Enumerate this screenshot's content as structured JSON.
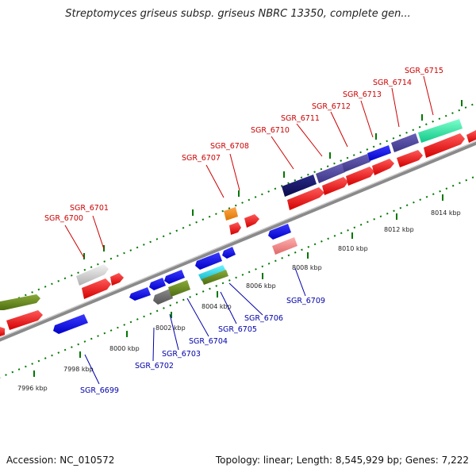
{
  "title": "Streptomyces griseus subsp. griseus NBRC 13350, complete gen...",
  "footer": {
    "accession": "Accession: NC_010572",
    "summary": "Topology: linear; Length: 8,545,929 bp; Genes: 7,222"
  },
  "axis_ticks": [
    "7996 kbp",
    "7998 kbp",
    "8000 kbp",
    "8002 kbp",
    "8004 kbp",
    "8006 kbp",
    "8008 kbp",
    "8010 kbp",
    "8012 kbp",
    "8014 kbp"
  ],
  "colors": {
    "forward_label": "#cc0000",
    "reverse_label": "#0000aa",
    "backbone": "#888888",
    "ruler": "#007700"
  },
  "gene_labels": [
    {
      "id": "SGR_6699",
      "strand": "reverse"
    },
    {
      "id": "SGR_6700",
      "strand": "forward"
    },
    {
      "id": "SGR_6701",
      "strand": "forward"
    },
    {
      "id": "SGR_6702",
      "strand": "reverse"
    },
    {
      "id": "SGR_6703",
      "strand": "reverse"
    },
    {
      "id": "SGR_6704",
      "strand": "reverse"
    },
    {
      "id": "SGR_6705",
      "strand": "reverse"
    },
    {
      "id": "SGR_6706",
      "strand": "reverse"
    },
    {
      "id": "SGR_6707",
      "strand": "forward"
    },
    {
      "id": "SGR_6708",
      "strand": "forward"
    },
    {
      "id": "SGR_6709",
      "strand": "reverse"
    },
    {
      "id": "SGR_6710",
      "strand": "forward"
    },
    {
      "id": "SGR_6711",
      "strand": "forward"
    },
    {
      "id": "SGR_6712",
      "strand": "forward"
    },
    {
      "id": "SGR_6713",
      "strand": "forward"
    },
    {
      "id": "SGR_6714",
      "strand": "forward"
    },
    {
      "id": "SGR_6715",
      "strand": "forward"
    }
  ]
}
